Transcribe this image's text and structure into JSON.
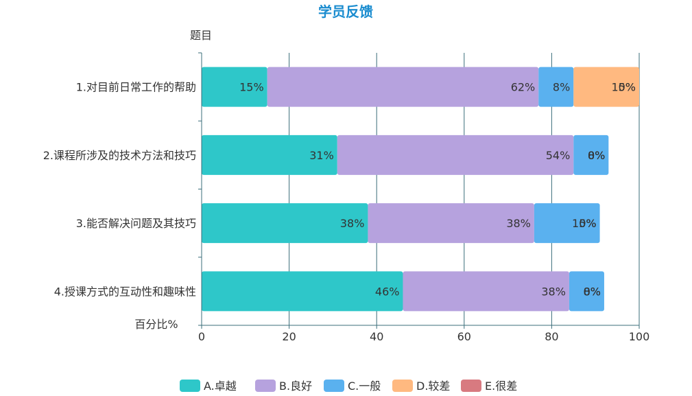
{
  "chart_data": {
    "type": "bar",
    "orientation": "horizontal",
    "stacked": true,
    "title": "学员反馈",
    "ylabel": "题目",
    "xlabel": "百分比%",
    "xlim": [
      0,
      100
    ],
    "xticks": [
      "0",
      "20",
      "40",
      "60",
      "80",
      "100"
    ],
    "categories": [
      "1.对目前日常工作的帮助",
      "2.课程所涉及的技术方法和技巧",
      "3.能否解决问题及其技巧",
      "4.授课方式的互动性和趣味性"
    ],
    "series": [
      {
        "name": "A.卓越",
        "color": "#2ec7c9",
        "values": [
          15,
          31,
          38,
          46
        ]
      },
      {
        "name": "B.良好",
        "color": "#b6a2de",
        "values": [
          62,
          54,
          38,
          38
        ]
      },
      {
        "name": "C.一般",
        "color": "#5ab1ef",
        "values": [
          8,
          8,
          15,
          8
        ]
      },
      {
        "name": "D.较差",
        "color": "#ffb980",
        "values": [
          15,
          0,
          0,
          0
        ]
      },
      {
        "name": "E.很差",
        "color": "#d87a80",
        "values": [
          0,
          0,
          0,
          0
        ]
      }
    ],
    "labels": [
      [
        "15%",
        "62%",
        "8%",
        "15%",
        "0%"
      ],
      [
        "31%",
        "54%",
        "8%",
        "0%",
        "0%"
      ],
      [
        "38%",
        "38%",
        "15%",
        "0%",
        "0%"
      ],
      [
        "46%",
        "38%",
        "8%",
        "0%",
        "0%"
      ]
    ],
    "grid": true,
    "legend": "bottom"
  },
  "colors": {
    "title": "#1a8ccf",
    "axis": "#3a6d7a",
    "grid": "#3a6d7a"
  }
}
